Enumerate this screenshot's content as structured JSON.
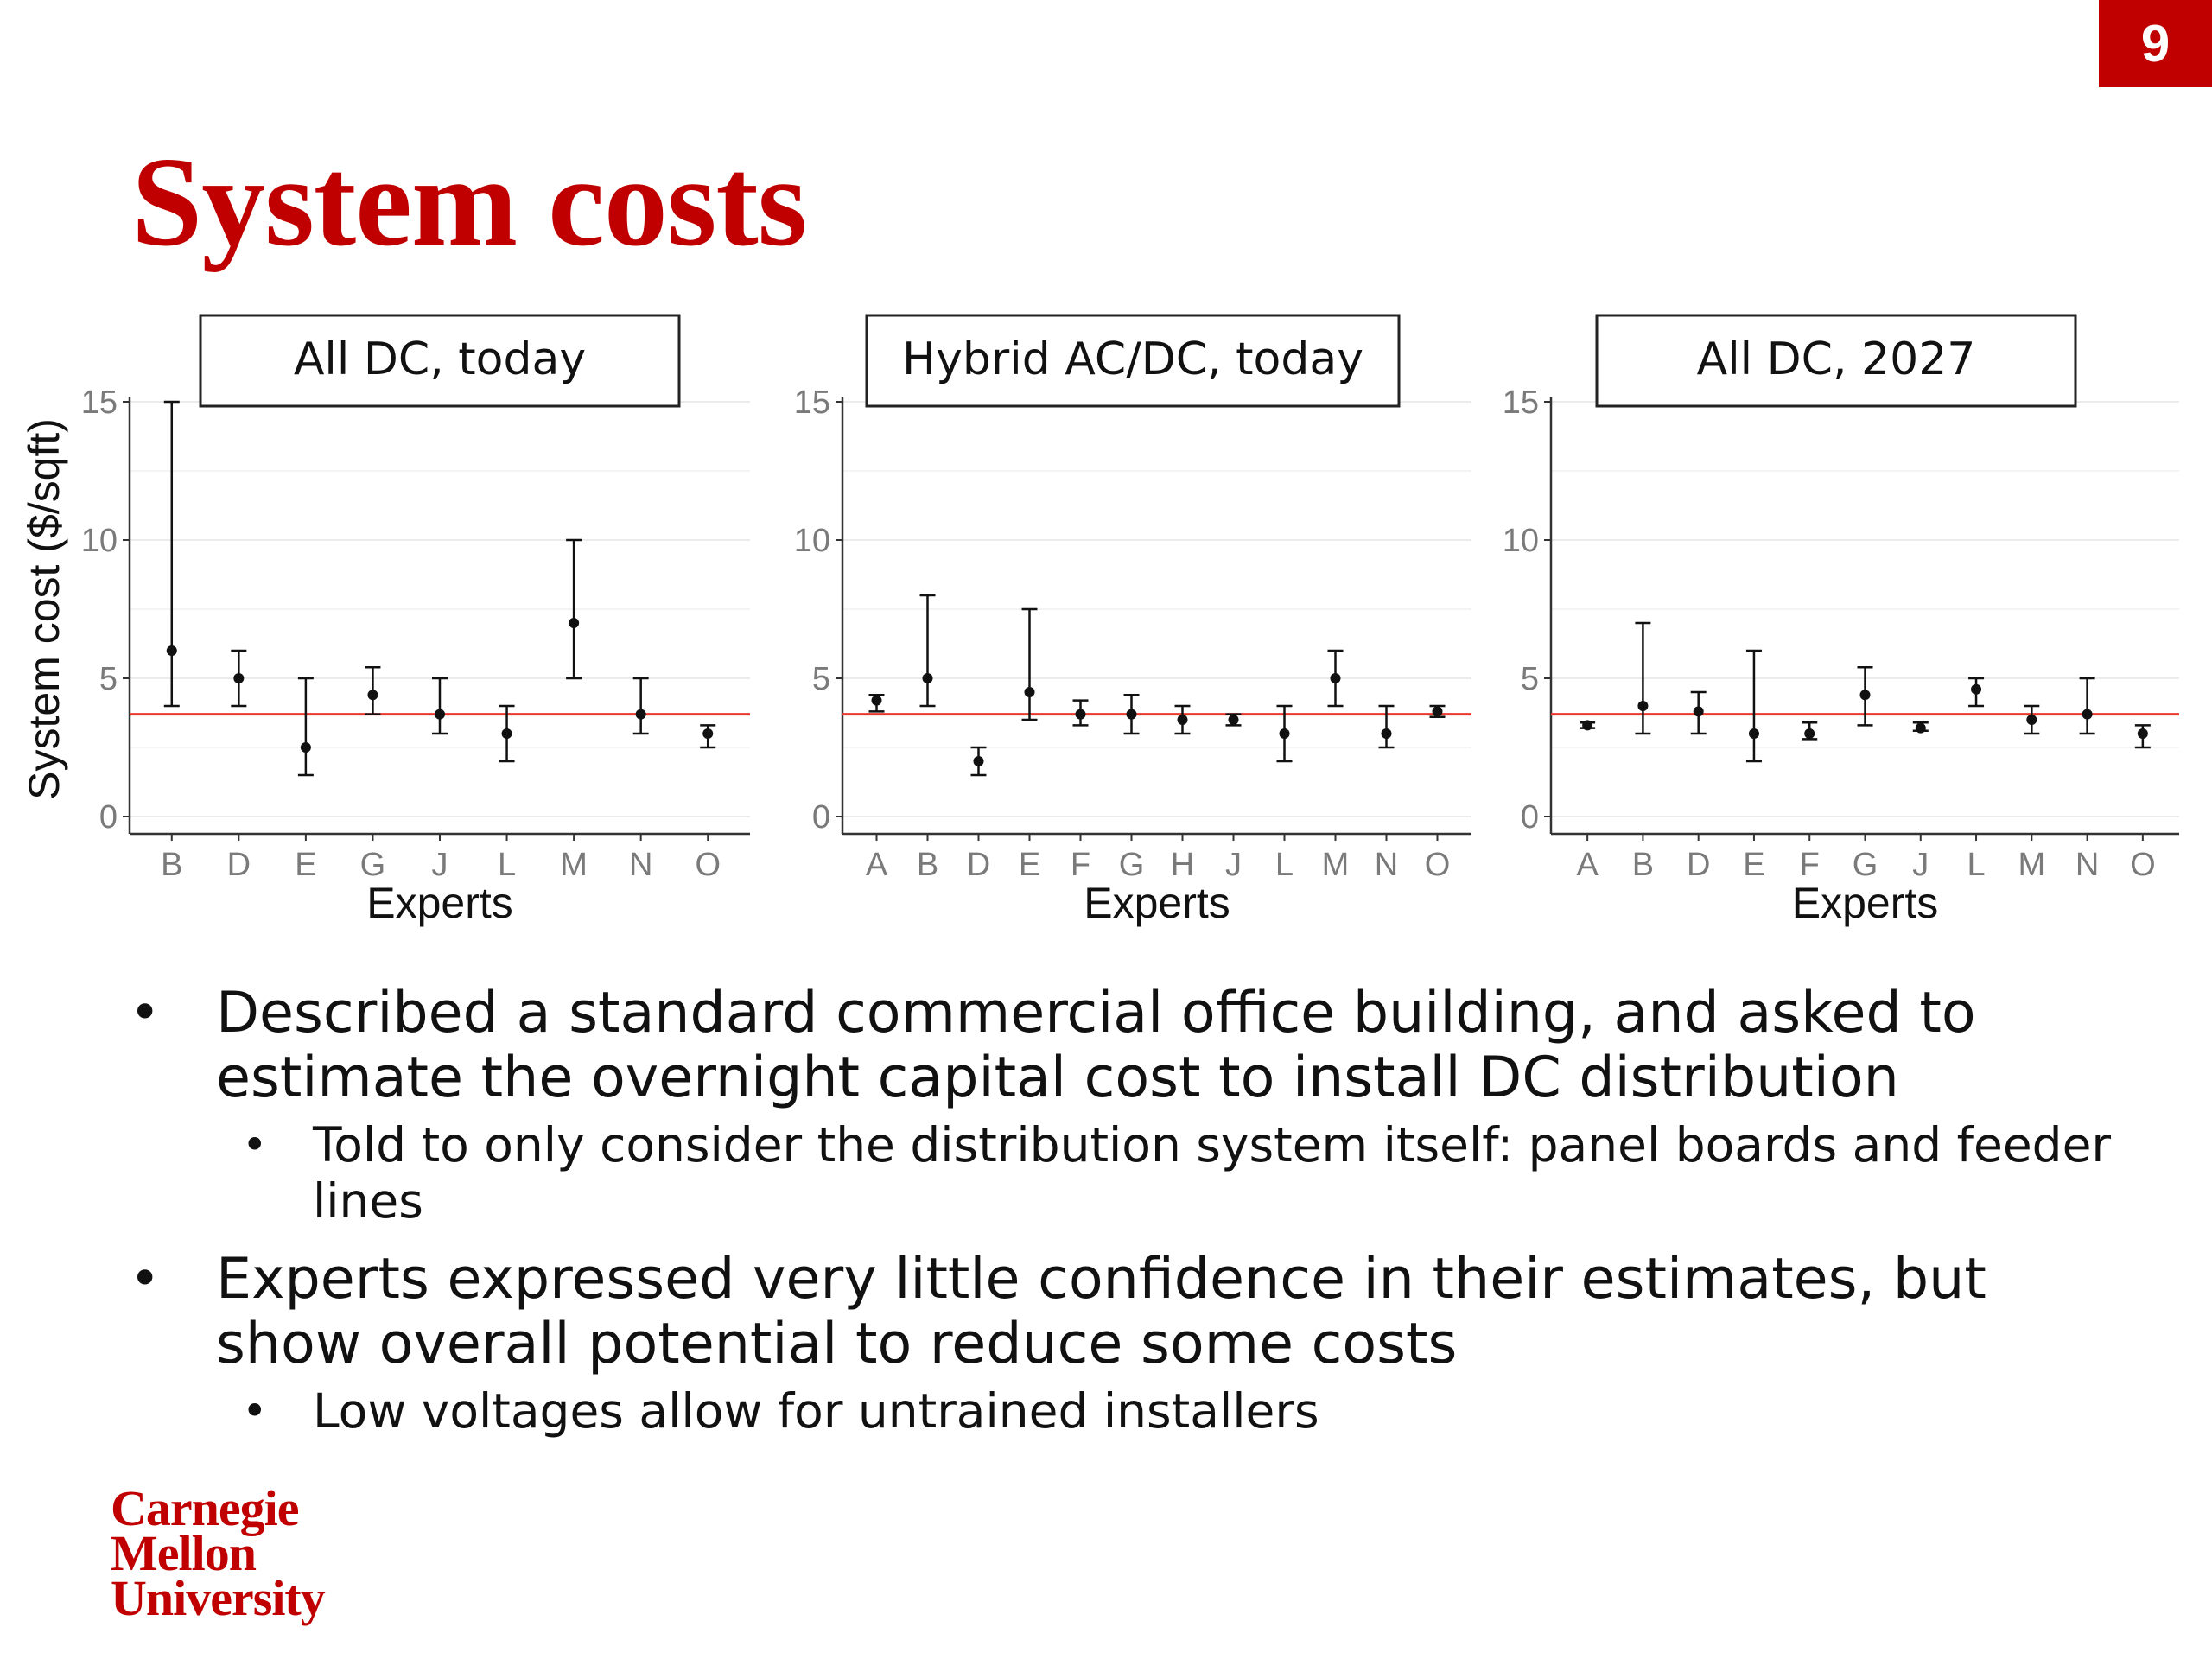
{
  "slide": {
    "page_number": "9",
    "title": "System costs",
    "accent_color": "#c00000"
  },
  "bullets": [
    {
      "level": 1,
      "text": "Described a standard commercial office building, and asked to estimate the overnight capital cost to install DC distribution"
    },
    {
      "level": 2,
      "text": "Told to only consider the distribution system itself: panel boards and feeder lines"
    },
    {
      "level": 1,
      "text": "Experts expressed very little confidence in their estimates, but show overall potential to reduce some costs"
    },
    {
      "level": 2,
      "text": "Low voltages allow for untrained installers"
    }
  ],
  "logo": {
    "line1": "Carnegie",
    "line2": "Mellon",
    "line3": "University"
  },
  "chart_data": [
    {
      "type": "scatter",
      "title": "All DC, today",
      "xlabel": "Experts",
      "ylabel": "System cost ($/sqft)",
      "ylim": [
        0,
        15
      ],
      "yticks": [
        0,
        5,
        10,
        15
      ],
      "reference_line": 3.7,
      "reference_color": "#e8392f",
      "categories": [
        "B",
        "D",
        "E",
        "G",
        "J",
        "L",
        "M",
        "N",
        "O"
      ],
      "points": [
        {
          "x": "B",
          "y": 6.0,
          "low": 4.0,
          "high": 15.0
        },
        {
          "x": "D",
          "y": 5.0,
          "low": 4.0,
          "high": 6.0
        },
        {
          "x": "E",
          "y": 2.5,
          "low": 1.5,
          "high": 5.0
        },
        {
          "x": "G",
          "y": 4.4,
          "low": 3.7,
          "high": 5.4
        },
        {
          "x": "J",
          "y": 3.7,
          "low": 3.0,
          "high": 5.0
        },
        {
          "x": "L",
          "y": 3.0,
          "low": 2.0,
          "high": 4.0
        },
        {
          "x": "M",
          "y": 7.0,
          "low": 5.0,
          "high": 10.0
        },
        {
          "x": "N",
          "y": 3.7,
          "low": 3.0,
          "high": 5.0
        },
        {
          "x": "O",
          "y": 3.0,
          "low": 2.5,
          "high": 3.3
        }
      ]
    },
    {
      "type": "scatter",
      "title": "Hybrid AC/DC, today",
      "xlabel": "Experts",
      "ylabel": "",
      "ylim": [
        0,
        15
      ],
      "yticks": [
        0,
        5,
        10,
        15
      ],
      "reference_line": 3.7,
      "reference_color": "#e8392f",
      "categories": [
        "A",
        "B",
        "D",
        "E",
        "F",
        "G",
        "H",
        "J",
        "L",
        "M",
        "N",
        "O"
      ],
      "points": [
        {
          "x": "A",
          "y": 4.2,
          "low": 3.8,
          "high": 4.4
        },
        {
          "x": "B",
          "y": 5.0,
          "low": 4.0,
          "high": 8.0
        },
        {
          "x": "D",
          "y": 2.0,
          "low": 1.5,
          "high": 2.5
        },
        {
          "x": "E",
          "y": 4.5,
          "low": 3.5,
          "high": 7.5
        },
        {
          "x": "F",
          "y": 3.7,
          "low": 3.3,
          "high": 4.2
        },
        {
          "x": "G",
          "y": 3.7,
          "low": 3.0,
          "high": 4.4
        },
        {
          "x": "H",
          "y": 3.5,
          "low": 3.0,
          "high": 4.0
        },
        {
          "x": "J",
          "y": 3.5,
          "low": 3.3,
          "high": 3.7
        },
        {
          "x": "L",
          "y": 3.0,
          "low": 2.0,
          "high": 4.0
        },
        {
          "x": "M",
          "y": 5.0,
          "low": 4.0,
          "high": 6.0
        },
        {
          "x": "N",
          "y": 3.0,
          "low": 2.5,
          "high": 4.0
        },
        {
          "x": "O",
          "y": 3.8,
          "low": 3.6,
          "high": 4.0
        }
      ]
    },
    {
      "type": "scatter",
      "title": "All DC, 2027",
      "xlabel": "Experts",
      "ylabel": "",
      "ylim": [
        0,
        15
      ],
      "yticks": [
        0,
        5,
        10,
        15
      ],
      "reference_line": 3.7,
      "reference_color": "#e8392f",
      "categories": [
        "A",
        "B",
        "D",
        "E",
        "F",
        "G",
        "J",
        "L",
        "M",
        "N",
        "O"
      ],
      "points": [
        {
          "x": "A",
          "y": 3.3,
          "low": 3.2,
          "high": 3.4
        },
        {
          "x": "B",
          "y": 4.0,
          "low": 3.0,
          "high": 7.0
        },
        {
          "x": "D",
          "y": 3.8,
          "low": 3.0,
          "high": 4.5
        },
        {
          "x": "E",
          "y": 3.0,
          "low": 2.0,
          "high": 6.0
        },
        {
          "x": "F",
          "y": 3.0,
          "low": 2.8,
          "high": 3.4
        },
        {
          "x": "G",
          "y": 4.4,
          "low": 3.3,
          "high": 5.4
        },
        {
          "x": "J",
          "y": 3.2,
          "low": 3.1,
          "high": 3.4
        },
        {
          "x": "L",
          "y": 4.6,
          "low": 4.0,
          "high": 5.0
        },
        {
          "x": "M",
          "y": 3.5,
          "low": 3.0,
          "high": 4.0
        },
        {
          "x": "N",
          "y": 3.7,
          "low": 3.0,
          "high": 5.0
        },
        {
          "x": "O",
          "y": 3.0,
          "low": 2.5,
          "high": 3.3
        }
      ]
    }
  ]
}
